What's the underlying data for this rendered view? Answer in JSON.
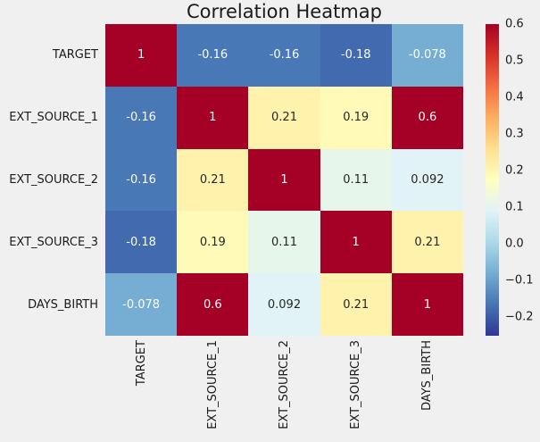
{
  "title": "Correlation Heatmap",
  "colors": {
    "background": "#f0f0f0",
    "label_text": "#1a1a1a",
    "annot_light": "#ffffff",
    "annot_dark": "#262626"
  },
  "chart_data": {
    "type": "heatmap",
    "title": "Correlation Heatmap",
    "categories": [
      "TARGET",
      "EXT_SOURCE_1",
      "EXT_SOURCE_2",
      "EXT_SOURCE_3",
      "DAYS_BIRTH"
    ],
    "matrix": [
      [
        1,
        -0.16,
        -0.16,
        -0.18,
        -0.078
      ],
      [
        -0.16,
        1,
        0.21,
        0.19,
        0.6
      ],
      [
        -0.16,
        0.21,
        1,
        0.11,
        0.092
      ],
      [
        -0.18,
        0.19,
        0.11,
        1,
        0.21
      ],
      [
        -0.078,
        0.6,
        0.092,
        0.21,
        1
      ]
    ],
    "cell_labels": [
      [
        "1",
        "-0.16",
        "-0.16",
        "-0.18",
        "-0.078"
      ],
      [
        "-0.16",
        "1",
        "0.21",
        "0.19",
        "0.6"
      ],
      [
        "-0.16",
        "0.21",
        "1",
        "0.11",
        "0.092"
      ],
      [
        "-0.18",
        "0.19",
        "0.11",
        "1",
        "0.21"
      ],
      [
        "-0.078",
        "0.6",
        "0.092",
        "0.21",
        "1"
      ]
    ],
    "vmin": -0.25,
    "vmax": 0.6,
    "grid": false,
    "legend_position": "right-colorbar",
    "colormap": {
      "name": "RdYlBu_r",
      "anchors_low_to_high": [
        "#313695",
        "#4575b4",
        "#74add1",
        "#abd9e9",
        "#e0f3f8",
        "#ffffbf",
        "#fee090",
        "#fdae61",
        "#f46d43",
        "#d73027",
        "#a50026"
      ]
    },
    "colorbar_ticks": [
      {
        "value": 0.6,
        "label": "0.6"
      },
      {
        "value": 0.5,
        "label": "0.5"
      },
      {
        "value": 0.4,
        "label": "0.4"
      },
      {
        "value": 0.3,
        "label": "0.3"
      },
      {
        "value": 0.2,
        "label": "0.2"
      },
      {
        "value": 0.1,
        "label": "0.1"
      },
      {
        "value": 0.0,
        "label": "0.0"
      },
      {
        "value": -0.1,
        "label": "−0.1"
      },
      {
        "value": -0.2,
        "label": "−0.2"
      }
    ]
  }
}
